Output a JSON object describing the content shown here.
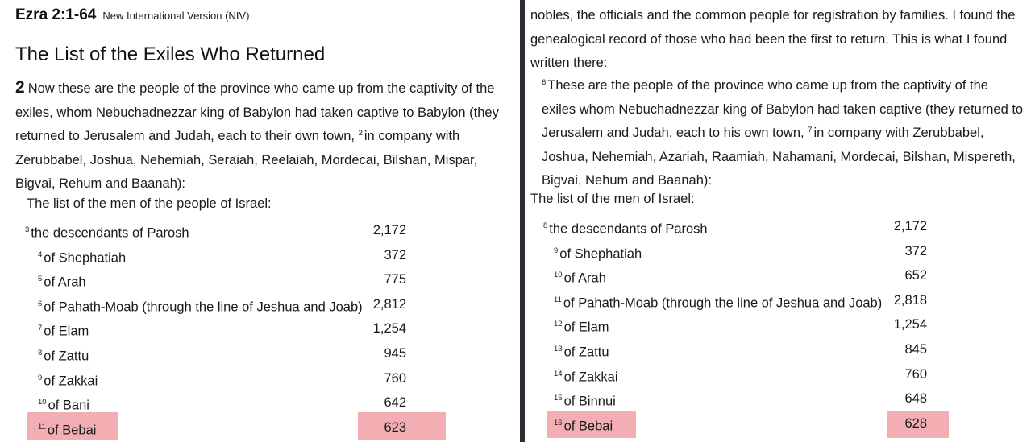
{
  "left": {
    "reference": "Ezra 2:1-64",
    "version": "New International Version (NIV)",
    "heading": "The List of the Exiles Who Returned",
    "chapter_num": "2",
    "intro_text": "Now these are the people of the province who came up from the captivity of the exiles, whom Nebuchadnezzar king of Babylon had taken captive to Babylon (they returned to Jerusalem and Judah, each to their own town,",
    "intro_verse": "2",
    "intro_text2": "in company with Zerubbabel, Joshua, Nehemiah, Seraiah, Reelaiah, Mordecai, Bilshan, Mispar, Bigvai, Rehum and Baanah):",
    "list_title": "The list of the men of the people of Israel:",
    "rows": [
      {
        "v": "3",
        "name": "the descendants of Parosh",
        "num": "2,172"
      },
      {
        "v": "4",
        "name": "of Shephatiah",
        "num": "372"
      },
      {
        "v": "5",
        "name": "of Arah",
        "num": "775"
      },
      {
        "v": "6",
        "name": "of Pahath-Moab (through the line of Jeshua and Joab)",
        "num": "2,812"
      },
      {
        "v": "7",
        "name": "of Elam",
        "num": "1,254"
      },
      {
        "v": "8",
        "name": "of Zattu",
        "num": "945"
      },
      {
        "v": "9",
        "name": "of Zakkai",
        "num": "760"
      },
      {
        "v": "10",
        "name": "of Bani",
        "num": "642"
      },
      {
        "v": "11",
        "name": "of Bebai",
        "num": "623"
      }
    ]
  },
  "right": {
    "top_text": "nobles, the officials and the common people for registration by families. I found the genealogical record of those who had been the first to return. This is what I found written there:",
    "para_verse": "6",
    "para_text": "These are the people of the province who came up from the captivity of the exiles whom Nebuchadnezzar king of Babylon had taken captive (they returned to Jerusalem and Judah, each to his own town,",
    "para_verse2": "7",
    "para_text2": "in company with Zerubbabel, Joshua, Nehemiah, Azariah, Raamiah, Nahamani, Mordecai, Bilshan, Mispereth, Bigvai, Nehum and Baanah):",
    "list_title": "The list of the men of Israel:",
    "rows": [
      {
        "v": "8",
        "name": "the descendants of Parosh",
        "num": "2,172"
      },
      {
        "v": "9",
        "name": "of Shephatiah",
        "num": "372"
      },
      {
        "v": "10",
        "name": "of Arah",
        "num": "652"
      },
      {
        "v": "11",
        "name": "of Pahath-Moab (through the line of Jeshua and Joab)",
        "num": "2,818"
      },
      {
        "v": "12",
        "name": "of Elam",
        "num": "1,254"
      },
      {
        "v": "13",
        "name": "of Zattu",
        "num": "845"
      },
      {
        "v": "14",
        "name": "of Zakkai",
        "num": "760"
      },
      {
        "v": "15",
        "name": "of Binnui",
        "num": "648"
      },
      {
        "v": "16",
        "name": "of Bebai",
        "num": "628"
      }
    ]
  },
  "highlight_color": "#f0a0a4"
}
